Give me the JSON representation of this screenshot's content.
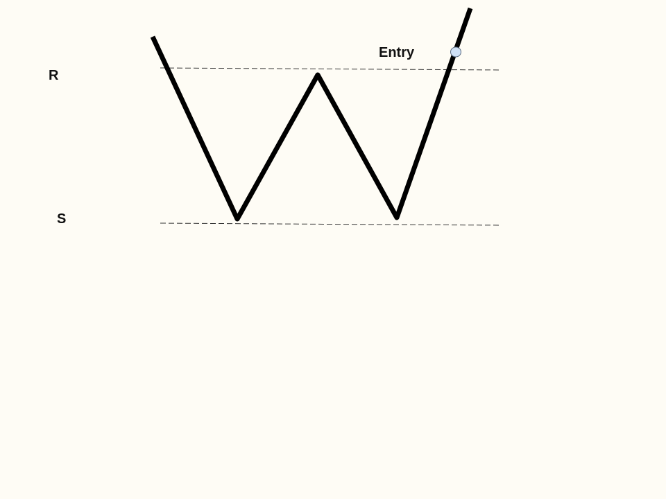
{
  "diagram": {
    "resistance_label": "R",
    "support_label": "S",
    "entry_label": "Entry",
    "colors": {
      "background": "#fefcf5",
      "price_line": "#000000",
      "level_line": "#333333",
      "entry_marker_fill": "#cfe0f5",
      "entry_marker_stroke": "#5a6a80"
    }
  }
}
